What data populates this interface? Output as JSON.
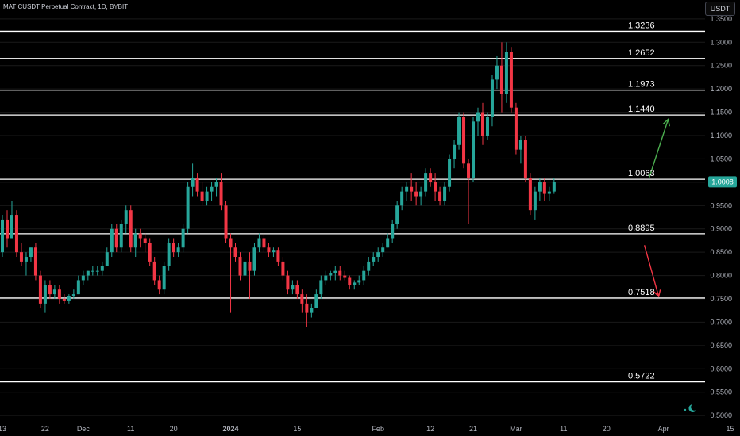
{
  "header": {
    "symbol_title": "MATICUSDT Perpetual Contract, 1D, BYBIT",
    "currency": "USDT"
  },
  "theme": {
    "up": "#26a69a",
    "down": "#f23645",
    "grid": "#1a1a1a",
    "level_line": "#ffffff",
    "arrow_up": "#4caf50",
    "arrow_down": "#f23645",
    "price_tag": "#26a69a",
    "axis_text": "#b2b5be"
  },
  "chart_data": {
    "type": "candlestick",
    "title": "MATICUSDT Perpetual Contract, 1D, BYBIT",
    "ylim": [
      0.49,
      1.36
    ],
    "y_ticks": [
      "1.3500",
      "1.3000",
      "1.2500",
      "1.2000",
      "1.1500",
      "1.1000",
      "1.0500",
      "1.0000",
      "0.9500",
      "0.9000",
      "0.8500",
      "0.8000",
      "0.7500",
      "0.7000",
      "0.6500",
      "0.6000",
      "0.5500",
      "0.5000"
    ],
    "x_ticks": [
      {
        "label": "13",
        "i": 0
      },
      {
        "label": "22",
        "i": 9
      },
      {
        "label": "Dec",
        "i": 17
      },
      {
        "label": "11",
        "i": 27
      },
      {
        "label": "20",
        "i": 36
      },
      {
        "label": "2024",
        "i": 48
      },
      {
        "label": "15",
        "i": 62
      },
      {
        "label": "Feb",
        "i": 79
      },
      {
        "label": "12",
        "i": 90
      },
      {
        "label": "21",
        "i": 99
      },
      {
        "label": "Mar",
        "i": 108
      },
      {
        "label": "11",
        "i": 118
      },
      {
        "label": "20",
        "i": 127
      },
      {
        "label": "Apr",
        "i": 139
      },
      {
        "label": "15",
        "i": 153
      }
    ],
    "levels": [
      1.3236,
      1.2652,
      1.1973,
      1.144,
      1.0063,
      0.8895,
      0.7518,
      0.5722
    ],
    "level_labels": [
      "1.3236",
      "1.2652",
      "1.1973",
      "1.1440",
      "1.0063",
      "0.8895",
      "0.7518",
      "0.5722"
    ],
    "current_price": "1.0008",
    "arrows": [
      {
        "direction": "up",
        "from": [
          136,
          1.01
        ],
        "to": [
          140,
          1.135
        ]
      },
      {
        "direction": "down",
        "from": [
          135,
          0.865
        ],
        "to": [
          138,
          0.755
        ]
      }
    ],
    "candles": [
      [
        0.85,
        0.93,
        0.84,
        0.92
      ],
      [
        0.92,
        0.94,
        0.86,
        0.88
      ],
      [
        0.88,
        0.96,
        0.88,
        0.93
      ],
      [
        0.93,
        0.94,
        0.84,
        0.85
      ],
      [
        0.85,
        0.87,
        0.82,
        0.83
      ],
      [
        0.83,
        0.85,
        0.8,
        0.84
      ],
      [
        0.84,
        0.86,
        0.83,
        0.86
      ],
      [
        0.86,
        0.87,
        0.79,
        0.8
      ],
      [
        0.8,
        0.81,
        0.73,
        0.74
      ],
      [
        0.74,
        0.79,
        0.72,
        0.78
      ],
      [
        0.78,
        0.79,
        0.75,
        0.76
      ],
      [
        0.76,
        0.78,
        0.75,
        0.77
      ],
      [
        0.77,
        0.78,
        0.74,
        0.75
      ],
      [
        0.75,
        0.76,
        0.74,
        0.745
      ],
      [
        0.745,
        0.76,
        0.74,
        0.755
      ],
      [
        0.755,
        0.77,
        0.75,
        0.76
      ],
      [
        0.76,
        0.8,
        0.76,
        0.79
      ],
      [
        0.79,
        0.81,
        0.78,
        0.8
      ],
      [
        0.8,
        0.81,
        0.79,
        0.81
      ],
      [
        0.81,
        0.82,
        0.8,
        0.81
      ],
      [
        0.81,
        0.82,
        0.8,
        0.81
      ],
      [
        0.81,
        0.83,
        0.8,
        0.82
      ],
      [
        0.82,
        0.86,
        0.82,
        0.85
      ],
      [
        0.85,
        0.91,
        0.84,
        0.9
      ],
      [
        0.9,
        0.91,
        0.85,
        0.86
      ],
      [
        0.86,
        0.92,
        0.85,
        0.91
      ],
      [
        0.91,
        0.95,
        0.89,
        0.94
      ],
      [
        0.94,
        0.95,
        0.85,
        0.86
      ],
      [
        0.86,
        0.9,
        0.84,
        0.89
      ],
      [
        0.89,
        0.9,
        0.86,
        0.88
      ],
      [
        0.88,
        0.89,
        0.85,
        0.87
      ],
      [
        0.87,
        0.88,
        0.82,
        0.83
      ],
      [
        0.83,
        0.84,
        0.78,
        0.79
      ],
      [
        0.79,
        0.8,
        0.76,
        0.77
      ],
      [
        0.77,
        0.83,
        0.76,
        0.82
      ],
      [
        0.82,
        0.88,
        0.81,
        0.87
      ],
      [
        0.87,
        0.88,
        0.84,
        0.85
      ],
      [
        0.85,
        0.87,
        0.84,
        0.86
      ],
      [
        0.86,
        0.91,
        0.85,
        0.9
      ],
      [
        0.9,
        1.0,
        0.89,
        0.99
      ],
      [
        0.99,
        1.04,
        0.97,
        1.01
      ],
      [
        1.01,
        1.02,
        0.97,
        0.98
      ],
      [
        0.98,
        1.0,
        0.95,
        0.96
      ],
      [
        0.96,
        0.99,
        0.95,
        0.98
      ],
      [
        0.98,
        1.0,
        0.96,
        0.99
      ],
      [
        0.99,
        1.01,
        0.97,
        1.0
      ],
      [
        1.0,
        1.02,
        0.94,
        0.95
      ],
      [
        0.95,
        0.96,
        0.87,
        0.88
      ],
      [
        0.88,
        0.89,
        0.72,
        0.86
      ],
      [
        0.86,
        0.87,
        0.83,
        0.84
      ],
      [
        0.84,
        0.85,
        0.79,
        0.8
      ],
      [
        0.8,
        0.84,
        0.79,
        0.83
      ],
      [
        0.83,
        0.85,
        0.75,
        0.81
      ],
      [
        0.81,
        0.87,
        0.8,
        0.86
      ],
      [
        0.86,
        0.89,
        0.85,
        0.88
      ],
      [
        0.88,
        0.89,
        0.85,
        0.86
      ],
      [
        0.86,
        0.87,
        0.84,
        0.85
      ],
      [
        0.85,
        0.86,
        0.84,
        0.855
      ],
      [
        0.855,
        0.86,
        0.82,
        0.83
      ],
      [
        0.83,
        0.84,
        0.79,
        0.8
      ],
      [
        0.8,
        0.81,
        0.76,
        0.77
      ],
      [
        0.77,
        0.79,
        0.76,
        0.78
      ],
      [
        0.78,
        0.79,
        0.75,
        0.76
      ],
      [
        0.76,
        0.77,
        0.72,
        0.74
      ],
      [
        0.74,
        0.76,
        0.69,
        0.72
      ],
      [
        0.72,
        0.74,
        0.71,
        0.73
      ],
      [
        0.73,
        0.77,
        0.73,
        0.76
      ],
      [
        0.76,
        0.8,
        0.75,
        0.79
      ],
      [
        0.79,
        0.81,
        0.78,
        0.8
      ],
      [
        0.8,
        0.81,
        0.79,
        0.805
      ],
      [
        0.805,
        0.82,
        0.79,
        0.81
      ],
      [
        0.81,
        0.82,
        0.79,
        0.8
      ],
      [
        0.8,
        0.81,
        0.79,
        0.795
      ],
      [
        0.795,
        0.8,
        0.77,
        0.78
      ],
      [
        0.78,
        0.79,
        0.77,
        0.785
      ],
      [
        0.785,
        0.8,
        0.78,
        0.79
      ],
      [
        0.79,
        0.82,
        0.78,
        0.81
      ],
      [
        0.81,
        0.84,
        0.8,
        0.83
      ],
      [
        0.83,
        0.85,
        0.82,
        0.84
      ],
      [
        0.84,
        0.86,
        0.83,
        0.85
      ],
      [
        0.85,
        0.87,
        0.84,
        0.86
      ],
      [
        0.86,
        0.89,
        0.86,
        0.88
      ],
      [
        0.88,
        0.92,
        0.87,
        0.91
      ],
      [
        0.91,
        0.96,
        0.9,
        0.95
      ],
      [
        0.95,
        0.99,
        0.94,
        0.98
      ],
      [
        0.98,
        1.0,
        0.96,
        0.99
      ],
      [
        0.99,
        1.02,
        0.96,
        0.98
      ],
      [
        0.98,
        1.0,
        0.95,
        0.97
      ],
      [
        0.97,
        0.99,
        0.95,
        0.98
      ],
      [
        0.98,
        1.03,
        0.97,
        1.02
      ],
      [
        1.02,
        1.03,
        0.99,
        1.0
      ],
      [
        1.0,
        1.02,
        0.96,
        0.98
      ],
      [
        0.98,
        0.99,
        0.95,
        0.96
      ],
      [
        0.96,
        1.0,
        0.95,
        0.99
      ],
      [
        0.99,
        1.06,
        0.98,
        1.05
      ],
      [
        1.05,
        1.09,
        1.03,
        1.08
      ],
      [
        1.08,
        1.15,
        1.07,
        1.14
      ],
      [
        1.14,
        1.15,
        1.03,
        1.04
      ],
      [
        1.04,
        1.05,
        0.91,
        1.01
      ],
      [
        1.01,
        1.14,
        1.0,
        1.13
      ],
      [
        1.13,
        1.16,
        1.1,
        1.15
      ],
      [
        1.15,
        1.17,
        1.08,
        1.1
      ],
      [
        1.1,
        1.15,
        1.09,
        1.14
      ],
      [
        1.14,
        1.23,
        1.12,
        1.22
      ],
      [
        1.22,
        1.27,
        1.2,
        1.25
      ],
      [
        1.25,
        1.3,
        1.15,
        1.19
      ],
      [
        1.19,
        1.3,
        1.17,
        1.28
      ],
      [
        1.28,
        1.29,
        1.15,
        1.16
      ],
      [
        1.16,
        1.17,
        1.06,
        1.07
      ],
      [
        1.07,
        1.1,
        1.04,
        1.09
      ],
      [
        1.09,
        1.1,
        1.0,
        1.01
      ],
      [
        1.01,
        1.02,
        0.93,
        0.94
      ],
      [
        0.94,
        0.99,
        0.92,
        0.98
      ],
      [
        0.98,
        1.01,
        0.96,
        1.0
      ],
      [
        1.0,
        1.01,
        0.96,
        0.975
      ],
      [
        0.975,
        0.99,
        0.96,
        0.98
      ],
      [
        0.98,
        1.01,
        0.975,
        1.0008
      ]
    ]
  }
}
